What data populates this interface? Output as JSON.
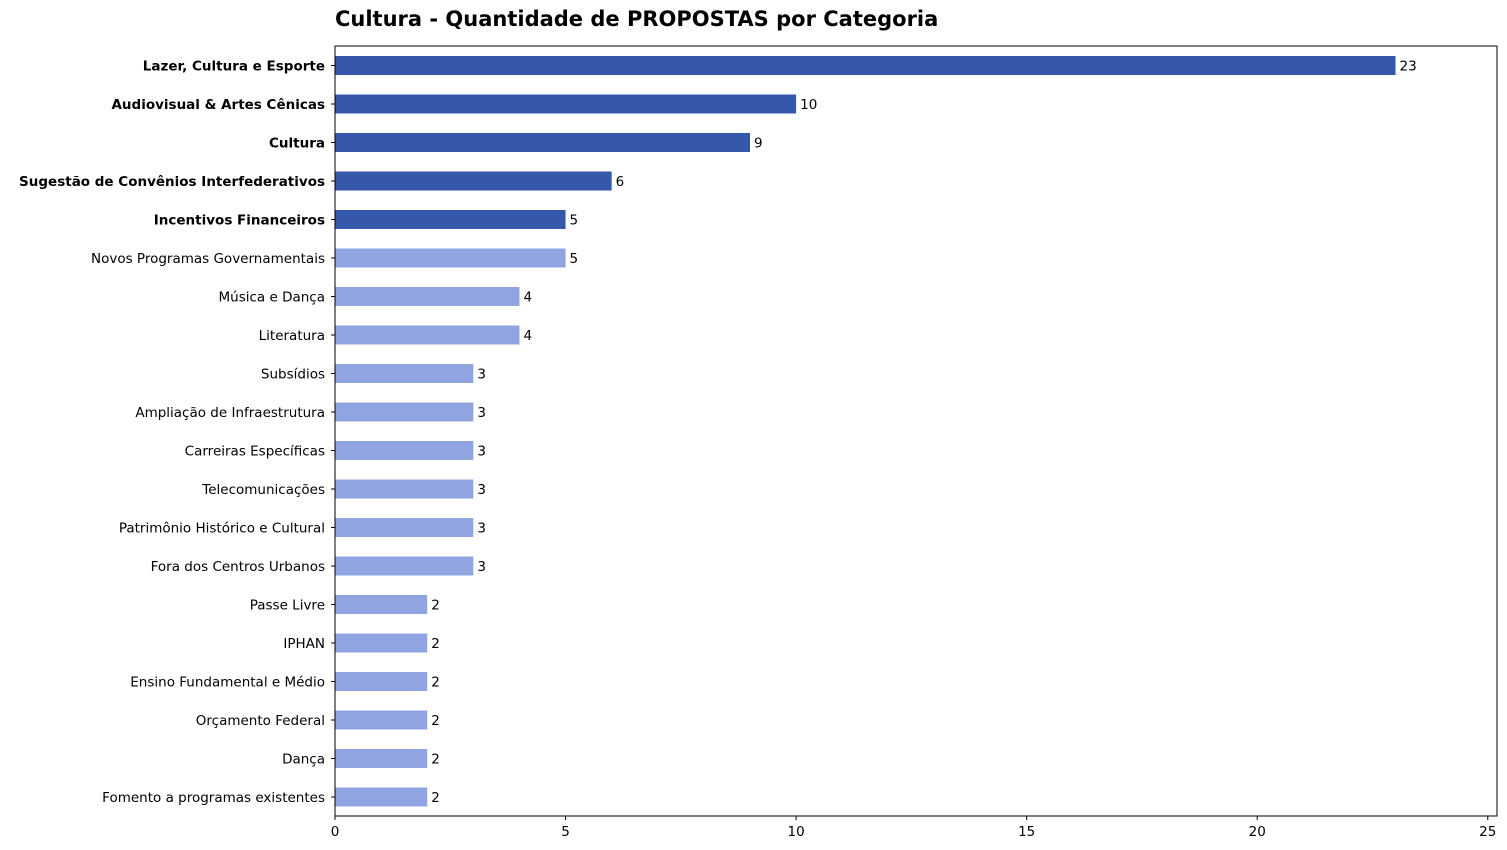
{
  "chart_data": {
    "type": "bar",
    "orientation": "horizontal",
    "title": "Cultura - Quantidade de PROPOSTAS por Categoria",
    "xlabel": "",
    "ylabel": "",
    "xlim": [
      0,
      25.2
    ],
    "xticks": [
      0,
      5,
      10,
      15,
      20,
      25
    ],
    "grid": false,
    "colors": {
      "highlight": "#3558AA",
      "normal": "#8FA4E1"
    },
    "categories": [
      "Lazer, Cultura e Esporte",
      "Audiovisual & Artes Cênicas",
      "Cultura",
      "Sugestão de Convênios Interfederativos",
      "Incentivos Financeiros",
      "Novos Programas Governamentais",
      "Música e Dança",
      "Literatura",
      "Subsídios",
      "Ampliação de Infraestrutura",
      "Carreiras Específicas",
      "Telecomunicações",
      "Patrimônio Histórico e Cultural",
      "Fora dos Centros Urbanos",
      "Passe Livre",
      "IPHAN",
      "Ensino Fundamental e Médio",
      "Orçamento Federal",
      "Dança",
      "Fomento a programas existentes"
    ],
    "values": [
      23,
      10,
      9,
      6,
      5,
      5,
      4,
      4,
      3,
      3,
      3,
      3,
      3,
      3,
      2,
      2,
      2,
      2,
      2,
      2
    ],
    "highlighted": [
      true,
      true,
      true,
      true,
      true,
      false,
      false,
      false,
      false,
      false,
      false,
      false,
      false,
      false,
      false,
      false,
      false,
      false,
      false,
      false
    ]
  }
}
